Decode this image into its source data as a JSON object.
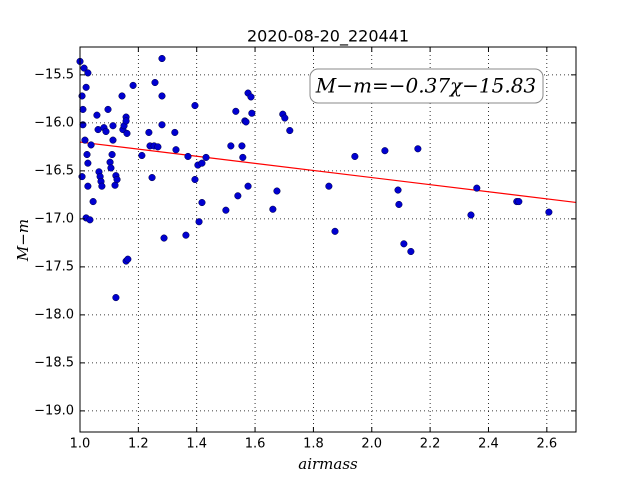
{
  "chart_data": {
    "type": "scatter",
    "title": "2020-08-20_220441",
    "xlabel": "airmass",
    "ylabel": "M−m",
    "annotation": "M−m=−0.37χ−15.83",
    "fit": {
      "slope": -0.37,
      "intercept": -15.83,
      "color": "#ff0000"
    },
    "color": "#0000d0",
    "grid": true,
    "xlim": [
      1.0,
      2.7
    ],
    "ylim": [
      -19.22,
      -15.21
    ],
    "xticks": [
      {
        "value": 1,
        "label": "1.0"
      },
      1.2,
      1.4,
      1.6,
      1.8,
      {
        "value": 2,
        "label": "2.0"
      },
      2.2,
      2.4,
      2.6
    ],
    "yticks": [
      {
        "value": -19,
        "label": "−19.0"
      },
      {
        "value": -18.5,
        "label": "−18.5"
      },
      {
        "value": -18,
        "label": "−18.0"
      },
      {
        "value": -17.5,
        "label": "−17.5"
      },
      {
        "value": -17,
        "label": "−17.0"
      },
      {
        "value": -16.5,
        "label": "−16.5"
      },
      {
        "value": -16,
        "label": "−16.0"
      },
      {
        "value": -15.5,
        "label": "−15.5"
      }
    ],
    "x": [
      1.0,
      1.014,
      1.027,
      1.007,
      1.021,
      1.01,
      1.01,
      1.058,
      1.017,
      1.038,
      1.024,
      1.027,
      1.007,
      1.027,
      1.045,
      1.021,
      1.034,
      1.065,
      1.069,
      1.072,
      1.075,
      1.062,
      1.082,
      1.096,
      1.089,
      1.103,
      1.106,
      1.113,
      1.113,
      1.11,
      1.12,
      1.123,
      1.127,
      1.123,
      1.144,
      1.147,
      1.151,
      1.158,
      1.158,
      1.161,
      1.158,
      1.164,
      1.182,
      1.212,
      1.236,
      1.24,
      1.254,
      1.247,
      1.267,
      1.257,
      1.281,
      1.281,
      1.281,
      1.288,
      1.325,
      1.329,
      1.363,
      1.37,
      1.394,
      1.394,
      1.404,
      1.408,
      1.418,
      1.418,
      1.432,
      1.5,
      1.517,
      1.534,
      1.541,
      1.555,
      1.558,
      1.565,
      1.569,
      1.576,
      1.576,
      1.586,
      1.589,
      1.661,
      1.675,
      1.695,
      1.702,
      1.719,
      1.853,
      1.874,
      1.942,
      2.045,
      2.09,
      2.093,
      2.11,
      2.134,
      2.158,
      2.34,
      2.36,
      2.497,
      2.504,
      2.607
    ],
    "values": [
      -15.36,
      -15.43,
      -15.48,
      -15.72,
      -15.63,
      -15.86,
      -16.02,
      -15.92,
      -16.18,
      -16.23,
      -16.33,
      -16.42,
      -16.56,
      -16.66,
      -16.82,
      -16.99,
      -17.01,
      -16.51,
      -16.56,
      -16.61,
      -16.66,
      -16.07,
      -16.05,
      -15.86,
      -16.09,
      -16.41,
      -16.47,
      -16.18,
      -16.03,
      -16.33,
      -16.65,
      -16.55,
      -16.59,
      -17.82,
      -15.72,
      -16.07,
      -16.03,
      -15.94,
      -15.98,
      -16.11,
      -17.44,
      -17.42,
      -15.61,
      -16.34,
      -16.1,
      -16.24,
      -16.24,
      -16.57,
      -16.25,
      -15.58,
      -15.72,
      -15.33,
      -16.02,
      -17.2,
      -16.1,
      -16.28,
      -17.17,
      -16.35,
      -15.82,
      -16.59,
      -16.44,
      -17.03,
      -16.83,
      -16.42,
      -16.36,
      -16.91,
      -16.24,
      -15.88,
      -16.76,
      -16.24,
      -16.36,
      -15.98,
      -15.99,
      -15.69,
      -16.66,
      -15.73,
      -15.9,
      -16.9,
      -16.71,
      -15.91,
      -15.95,
      -16.08,
      -16.66,
      -17.13,
      -16.35,
      -16.29,
      -16.7,
      -16.85,
      -17.26,
      -17.34,
      -16.27,
      -16.96,
      -16.68,
      -16.82,
      -16.82,
      -16.93
    ]
  }
}
